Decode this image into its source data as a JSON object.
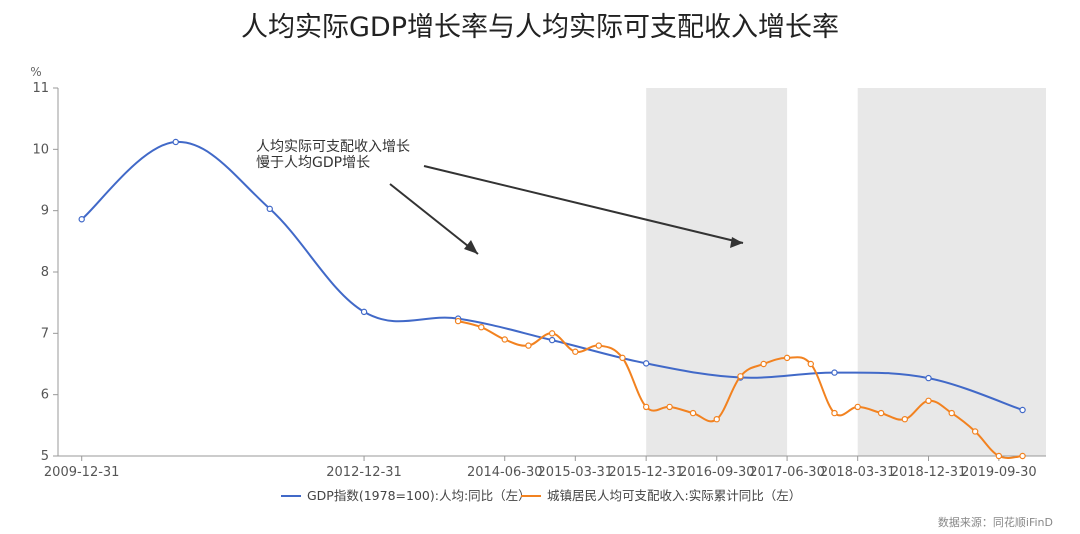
{
  "chart_data": {
    "type": "line",
    "title": "人均实际GDP增长率与人均实际可支配收入增长率",
    "ylabel": "%",
    "ylim": [
      5,
      11
    ],
    "yticks": [
      5,
      6,
      7,
      8,
      9,
      10,
      11
    ],
    "xlim": [
      "2009-09-30",
      "2020-03-31"
    ],
    "x_tick_labels": [
      "2009-12-31",
      "2012-12-31",
      "2014-06-30",
      "2015-03-31",
      "2015-12-31",
      "2016-09-30",
      "2017-06-30",
      "2018-03-31",
      "2018-12-31",
      "2019-09-30"
    ],
    "shaded_periods": [
      [
        "2015-12-31",
        "2017-06-30"
      ],
      "2018-03-31 to 2020-03-31"
    ],
    "series": [
      {
        "name": "GDP指数(1978=100):人均:同比（左）",
        "color": "#4169c8",
        "x": [
          "2009-12-31",
          "2010-12-31",
          "2011-12-31",
          "2012-12-31",
          "2013-12-31",
          "2014-12-31",
          "2015-12-31",
          "2016-12-31",
          "2017-12-31",
          "2018-12-31",
          "2019-12-31"
        ],
        "values": [
          8.86,
          10.12,
          9.03,
          7.35,
          7.24,
          6.89,
          6.51,
          6.28,
          6.36,
          6.27,
          5.75
        ]
      },
      {
        "name": "城镇居民人均可支配收入:实际累计同比（左）",
        "color": "#f28220",
        "x": [
          "2013-12-31",
          "2014-03-31",
          "2014-06-30",
          "2014-09-30",
          "2014-12-31",
          "2015-03-31",
          "2015-06-30",
          "2015-09-30",
          "2015-12-31",
          "2016-03-31",
          "2016-06-30",
          "2016-09-30",
          "2016-12-31",
          "2017-03-31",
          "2017-06-30",
          "2017-09-30",
          "2017-12-31",
          "2018-03-31",
          "2018-06-30",
          "2018-09-30",
          "2018-12-31",
          "2019-03-31",
          "2019-06-30",
          "2019-09-30",
          "2019-12-31"
        ],
        "values": [
          7.2,
          7.1,
          6.9,
          6.8,
          7.0,
          6.7,
          6.8,
          6.6,
          5.8,
          5.8,
          5.7,
          5.6,
          6.3,
          6.5,
          6.6,
          6.5,
          5.7,
          5.8,
          5.7,
          5.6,
          5.9,
          5.7,
          5.4,
          5.0,
          5.0
        ]
      }
    ],
    "annotation": {
      "lines": [
        "人均实际可支配收入增长",
        "慢于人均GDP增长"
      ]
    }
  },
  "source_text": "数据来源：同花顺iFinD"
}
